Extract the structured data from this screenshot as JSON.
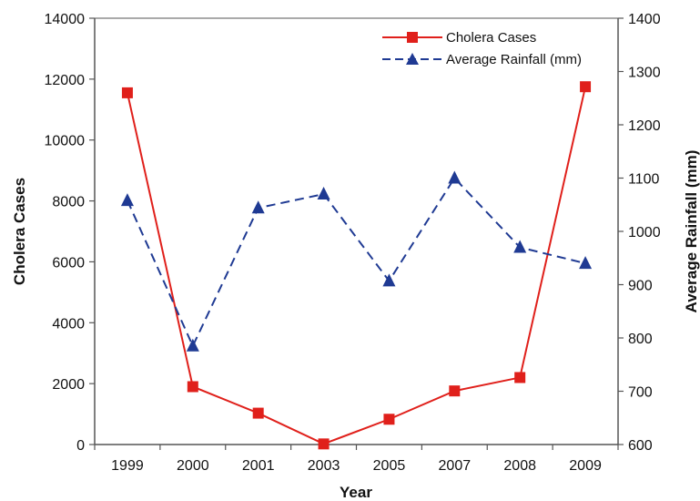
{
  "chart_data": {
    "type": "line",
    "title": "",
    "xlabel": "Year",
    "ylabel_left": "Cholera Cases",
    "ylabel_right": "Average Rainfall (mm)",
    "categories": [
      "1999",
      "2000",
      "2001",
      "2003",
      "2005",
      "2007",
      "2008",
      "2009"
    ],
    "y_left_range": [
      0,
      14000
    ],
    "y_left_ticks": [
      0,
      2000,
      4000,
      6000,
      8000,
      10000,
      12000,
      14000
    ],
    "y_right_range": [
      600,
      1400
    ],
    "y_right_ticks": [
      600,
      700,
      800,
      900,
      1000,
      1100,
      1200,
      1300,
      1400
    ],
    "grid": false,
    "legend_position": "top-right",
    "series": [
      {
        "name": "Cholera Cases",
        "axis": "left",
        "color": "#e0201b",
        "line_style": "solid",
        "marker": "square",
        "values": [
          11550,
          1900,
          1030,
          20,
          830,
          1760,
          2200,
          11750
        ]
      },
      {
        "name": "Average Rainfall (mm)",
        "axis": "right",
        "color": "#1f3a93",
        "line_style": "dashed",
        "marker": "triangle",
        "values": [
          1058,
          785,
          1044,
          1070,
          907,
          1100,
          970,
          940
        ]
      }
    ]
  }
}
